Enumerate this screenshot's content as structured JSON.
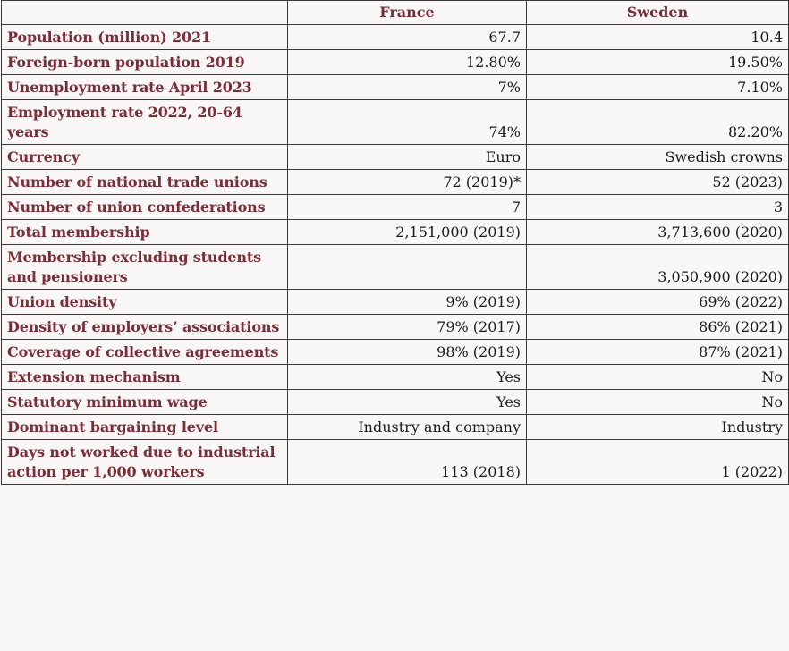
{
  "header": {
    "col1": "",
    "col2": "France",
    "col3": "Sweden"
  },
  "rows": [
    {
      "label": "Population (million) 2021",
      "france": "67.7",
      "sweden": "10.4"
    },
    {
      "label": "Foreign-born population 2019",
      "france": "12.80%",
      "sweden": "19.50%"
    },
    {
      "label": "Unemployment rate April 2023",
      "france": "7%",
      "sweden": "7.10%"
    },
    {
      "label": "Employment rate 2022, 20-64 years",
      "france": "74%",
      "sweden": "82.20%"
    },
    {
      "label": "Currency",
      "france": "Euro",
      "sweden": "Swedish crowns"
    },
    {
      "label": "Number of national trade unions",
      "france": "72 (2019)*",
      "sweden": "52 (2023)"
    },
    {
      "label": "Number of union confederations",
      "france": "7",
      "sweden": "3"
    },
    {
      "label": "Total membership",
      "france": "2,151,000 (2019)",
      "sweden": "3,713,600 (2020)"
    },
    {
      "label": "Membership excluding students and pensioners",
      "france": "",
      "sweden": "3,050,900 (2020)"
    },
    {
      "label": "Union density",
      "france": "9% (2019)",
      "sweden": "69% (2022)"
    },
    {
      "label": "Density of employers’ associations",
      "france": "79% (2017)",
      "sweden": "86% (2021)"
    },
    {
      "label": "Coverage of collective agreements",
      "france": "98% (2019)",
      "sweden": "87% (2021)"
    },
    {
      "label": "Extension mechanism",
      "france": "Yes",
      "sweden": "No"
    },
    {
      "label": "Statutory minimum wage",
      "france": "Yes",
      "sweden": "No"
    },
    {
      "label": "Dominant bargaining level",
      "france": "Industry and company",
      "sweden": "Industry"
    },
    {
      "label": "Days not worked due to industrial action per 1,000 workers",
      "france": "113 (2018)",
      "sweden": "1 (2022)"
    }
  ]
}
